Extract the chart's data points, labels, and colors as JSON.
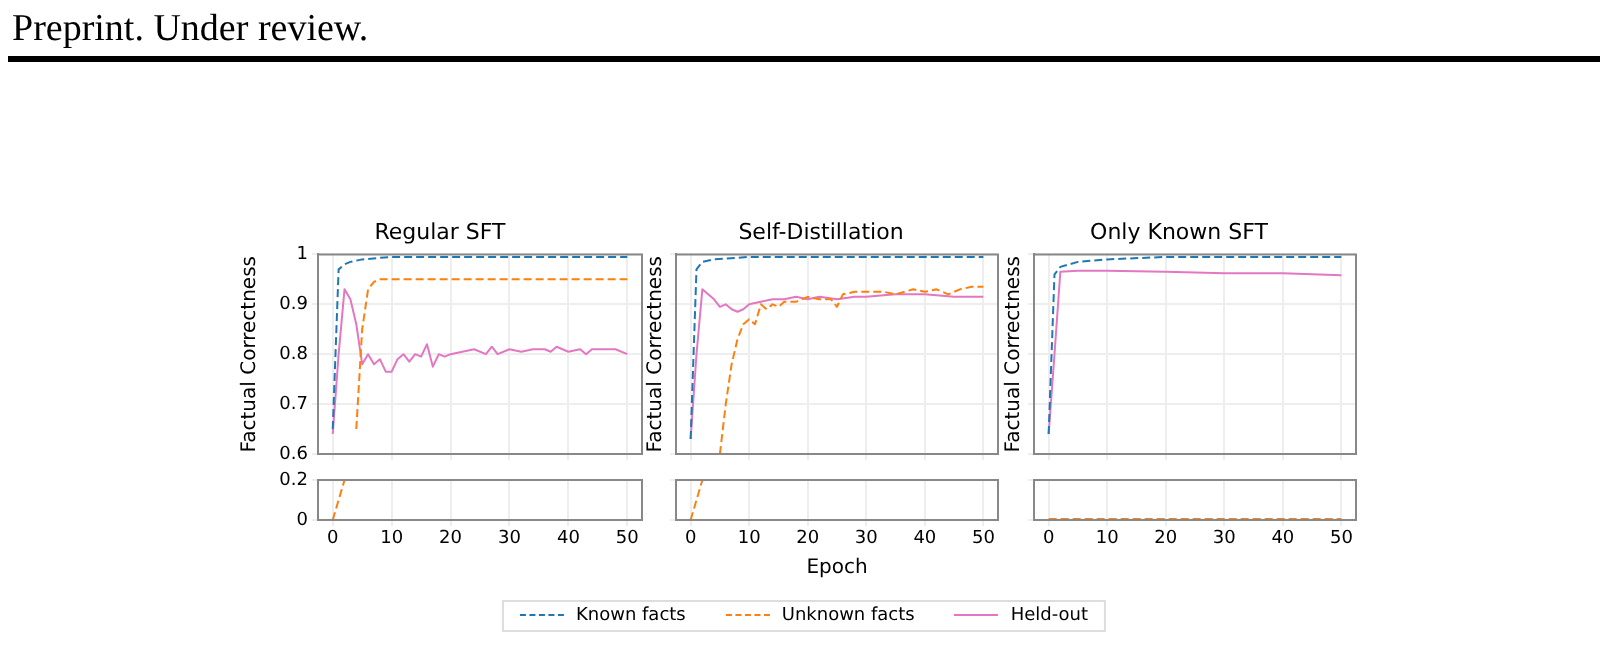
{
  "chart_data": [
    {
      "type": "line",
      "title": "Regular SFT",
      "ylabel": "Factual Correctness",
      "xlim": [
        -2.5,
        52.5
      ],
      "xticks": [
        0,
        10,
        20,
        30,
        40,
        50
      ],
      "ylim": [
        0.6,
        1
      ],
      "yticks": [
        0.6,
        0.7,
        0.8,
        0.9,
        1
      ],
      "tick_labels": "y",
      "grid": true,
      "marker": "none",
      "legend": "bottom",
      "annotations": [
        "Preprint. Under review."
      ],
      "series": [
        {
          "name": "Known facts",
          "color": "#1f77b4",
          "line_style": "dashed",
          "x": [
            0,
            1,
            2,
            3,
            5,
            10,
            50
          ],
          "values": [
            0.65,
            0.97,
            0.98,
            0.985,
            0.99,
            0.995,
            0.995
          ]
        },
        {
          "name": "Unknown facts",
          "color": "#ff7f0e",
          "line_style": "dashed",
          "x": [
            4,
            5,
            6,
            7,
            8,
            50
          ],
          "values": [
            0.65,
            0.85,
            0.93,
            0.945,
            0.95,
            0.95
          ]
        },
        {
          "name": "Held-out",
          "color": "#e377c2",
          "line_style": "solid",
          "x": [
            0,
            1,
            2,
            3,
            4,
            5,
            6,
            7,
            8,
            9,
            10,
            11,
            12,
            13,
            14,
            15,
            16,
            17,
            18,
            19,
            20,
            22,
            24,
            26,
            27,
            28,
            30,
            32,
            34,
            36,
            37,
            38,
            40,
            42,
            43,
            44,
            46,
            48,
            50
          ],
          "values": [
            0.64,
            0.8,
            0.93,
            0.91,
            0.86,
            0.78,
            0.8,
            0.78,
            0.79,
            0.765,
            0.765,
            0.79,
            0.8,
            0.785,
            0.8,
            0.795,
            0.82,
            0.775,
            0.8,
            0.795,
            0.8,
            0.805,
            0.81,
            0.8,
            0.815,
            0.8,
            0.81,
            0.805,
            0.81,
            0.81,
            0.805,
            0.815,
            0.805,
            0.81,
            0.8,
            0.81,
            0.81,
            0.81,
            0.8
          ]
        }
      ]
    },
    {
      "type": "line",
      "title": "Self-Distillation",
      "ylabel": "Factual Correctness",
      "xlim": [
        -2.5,
        52.5
      ],
      "xticks": [
        0,
        10,
        20,
        30,
        40,
        50
      ],
      "ylim": [
        0.6,
        1
      ],
      "yticks": [
        0.6,
        0.7,
        0.8,
        0.9,
        1
      ],
      "tick_labels": false,
      "grid": true,
      "marker": "none",
      "series": [
        {
          "color": "#1f77b4",
          "line_style": "dashed",
          "x": [
            0,
            1,
            2,
            4,
            10,
            50
          ],
          "values": [
            0.63,
            0.97,
            0.985,
            0.99,
            0.995,
            0.995
          ]
        },
        {
          "color": "#ff7f0e",
          "line_style": "dashed",
          "x": [
            5,
            6,
            7,
            8,
            9,
            10,
            11,
            12,
            13,
            14,
            15,
            16,
            18,
            20,
            22,
            24,
            25,
            26,
            28,
            30,
            33,
            35,
            38,
            40,
            42,
            44,
            46,
            48,
            50
          ],
          "values": [
            0.6,
            0.7,
            0.78,
            0.83,
            0.86,
            0.87,
            0.86,
            0.9,
            0.89,
            0.9,
            0.895,
            0.905,
            0.905,
            0.915,
            0.91,
            0.91,
            0.895,
            0.92,
            0.925,
            0.925,
            0.925,
            0.92,
            0.93,
            0.925,
            0.93,
            0.92,
            0.93,
            0.935,
            0.935
          ]
        },
        {
          "color": "#e377c2",
          "line_style": "solid",
          "x": [
            0,
            1,
            2,
            3,
            4,
            5,
            6,
            7,
            8,
            9,
            10,
            12,
            14,
            16,
            18,
            20,
            22,
            25,
            28,
            30,
            35,
            40,
            45,
            50
          ],
          "values": [
            0.63,
            0.8,
            0.93,
            0.92,
            0.91,
            0.895,
            0.9,
            0.89,
            0.885,
            0.89,
            0.9,
            0.905,
            0.91,
            0.91,
            0.915,
            0.91,
            0.915,
            0.91,
            0.915,
            0.915,
            0.92,
            0.92,
            0.915,
            0.915
          ]
        }
      ]
    },
    {
      "type": "line",
      "title": "Only Known SFT",
      "ylabel": "Factual Correctness",
      "xlim": [
        -2.5,
        52.5
      ],
      "xticks": [
        0,
        10,
        20,
        30,
        40,
        50
      ],
      "ylim": [
        0.6,
        1
      ],
      "yticks": [
        0.6,
        0.7,
        0.8,
        0.9,
        1
      ],
      "tick_labels": false,
      "grid": true,
      "marker": "none",
      "series": [
        {
          "color": "#1f77b4",
          "line_style": "dashed",
          "x": [
            0,
            1,
            2,
            5,
            10,
            20,
            50
          ],
          "values": [
            0.64,
            0.96,
            0.975,
            0.985,
            0.99,
            0.995,
            0.995
          ]
        },
        {
          "color": "#e377c2",
          "line_style": "solid",
          "x": [
            0,
            1,
            2,
            5,
            10,
            20,
            30,
            40,
            50
          ],
          "values": [
            0.64,
            0.8,
            0.965,
            0.967,
            0.967,
            0.965,
            0.962,
            0.962,
            0.958
          ]
        }
      ]
    },
    {
      "type": "line",
      "xlim": [
        -2.5,
        52.5
      ],
      "xticks": [
        0,
        10,
        20,
        30,
        40,
        50
      ],
      "ylim": [
        0,
        0.2
      ],
      "yticks": [
        0,
        0.2
      ],
      "grid": true,
      "marker": "none",
      "series": [
        {
          "color": "#ff7f0e",
          "line_style": "dashed",
          "x": [
            0,
            1,
            2
          ],
          "values": [
            0,
            0.1,
            0.2
          ]
        }
      ]
    },
    {
      "type": "line",
      "xlabel": "Epoch",
      "xlim": [
        -2.5,
        52.5
      ],
      "xticks": [
        0,
        10,
        20,
        30,
        40,
        50
      ],
      "ylim": [
        0,
        0.2
      ],
      "yticks": [
        0,
        0.2
      ],
      "tick_labels": "x",
      "grid": true,
      "marker": "none",
      "series": [
        {
          "color": "#ff7f0e",
          "line_style": "dashed",
          "x": [
            0,
            1,
            2
          ],
          "values": [
            0,
            0.1,
            0.2
          ]
        }
      ]
    },
    {
      "type": "line",
      "xlim": [
        -2.5,
        52.5
      ],
      "xticks": [
        0,
        10,
        20,
        30,
        40,
        50
      ],
      "ylim": [
        0,
        0.2
      ],
      "yticks": [
        0,
        0.2
      ],
      "tick_labels": "x",
      "grid": true,
      "marker": "none",
      "series": [
        {
          "color": "#ff7f0e",
          "line_style": "dashed",
          "x": [
            0,
            10,
            20,
            30,
            40,
            50
          ],
          "values": [
            0.005,
            0.005,
            0.005,
            0.005,
            0.005,
            0.005
          ]
        }
      ]
    }
  ]
}
